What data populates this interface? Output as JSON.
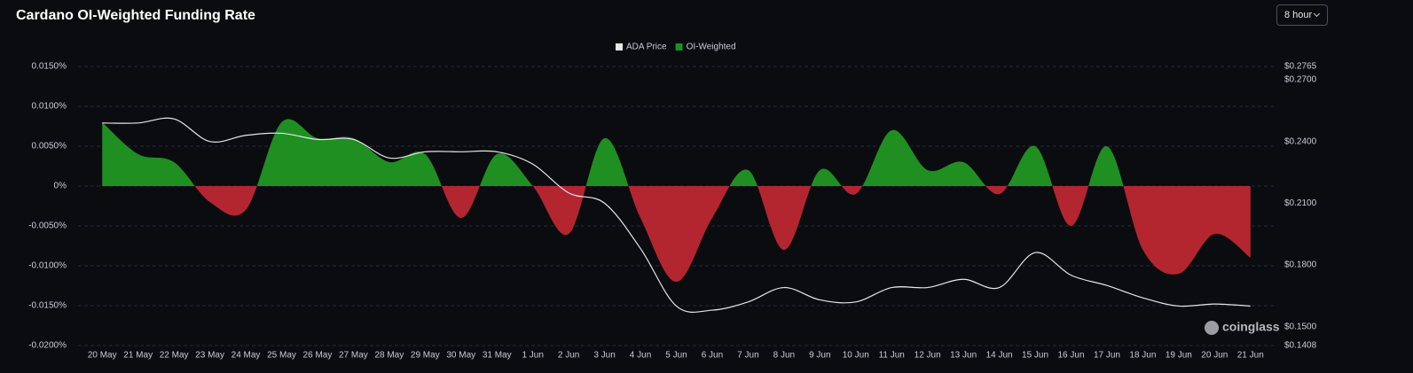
{
  "chart_data": {
    "type": "area-line",
    "title": "Cardano OI-Weighted Funding Rate",
    "watermark": "coinglass",
    "legend": "top-center",
    "grid": true,
    "categories": [
      "20 May",
      "21 May",
      "22 May",
      "23 May",
      "24 May",
      "25 May",
      "26 May",
      "27 May",
      "28 May",
      "29 May",
      "30 May",
      "31 May",
      "1 Jun",
      "2 Jun",
      "3 Jun",
      "4 Jun",
      "5 Jun",
      "6 Jun",
      "7 Jun",
      "8 Jun",
      "9 Jun",
      "10 Jun",
      "11 Jun",
      "12 Jun",
      "13 Jun",
      "14 Jun",
      "15 Jun",
      "16 Jun",
      "17 Jun",
      "18 Jun",
      "19 Jun",
      "20 Jun",
      "21 Jun"
    ],
    "series": [
      {
        "name": "ADA Price",
        "color": "#e6e6e6",
        "axis": "y2",
        "values": [
          0.249,
          0.249,
          0.251,
          0.24,
          0.243,
          0.244,
          0.241,
          0.241,
          0.232,
          0.235,
          0.235,
          0.235,
          0.229,
          0.215,
          0.21,
          0.188,
          0.16,
          0.158,
          0.162,
          0.169,
          0.163,
          0.162,
          0.169,
          0.169,
          0.173,
          0.169,
          0.186,
          0.175,
          0.17,
          0.164,
          0.16,
          0.161,
          0.16
        ]
      },
      {
        "name": "OI-Weighted",
        "color": "#1f8f22",
        "negative_color": "#b3262f",
        "values": [
          0.008,
          0.004,
          0.003,
          -0.002,
          -0.003,
          0.008,
          0.006,
          0.006,
          0.003,
          0.004,
          -0.004,
          0.004,
          0.0,
          -0.006,
          0.006,
          -0.004,
          -0.012,
          -0.004,
          0.002,
          -0.008,
          0.002,
          -0.001,
          0.007,
          0.002,
          0.003,
          -0.001,
          0.005,
          -0.005,
          0.005,
          -0.008,
          -0.011,
          -0.006,
          -0.009
        ]
      }
    ],
    "ylim": [
      -0.02,
      0.015
    ],
    "yticks": [
      {
        "value": -0.02,
        "label": "-0.0200%"
      },
      {
        "value": -0.015,
        "label": "-0.0150%"
      },
      {
        "value": -0.01,
        "label": "-0.0100%"
      },
      {
        "value": -0.005,
        "label": "-0.0050%"
      },
      {
        "value": 0,
        "label": "0%"
      },
      {
        "value": 0.005,
        "label": "0.0050%"
      },
      {
        "value": 0.01,
        "label": "0.0100%"
      },
      {
        "value": 0.015,
        "label": "0.0150%"
      }
    ],
    "y2lim": [
      0.1408,
      0.2765
    ],
    "y2ticks": [
      {
        "value": 0.1408,
        "label": "$0.1408"
      },
      {
        "value": 0.15,
        "label": "$0.1500"
      },
      {
        "value": 0.18,
        "label": "$0.1800"
      },
      {
        "value": 0.21,
        "label": "$0.2100"
      },
      {
        "value": 0.24,
        "label": "$0.2400"
      },
      {
        "value": 0.27,
        "label": "$0.2700"
      },
      {
        "value": 0.2765,
        "label": "$0.2765"
      }
    ]
  },
  "controls": {
    "interval": "8 hour"
  }
}
